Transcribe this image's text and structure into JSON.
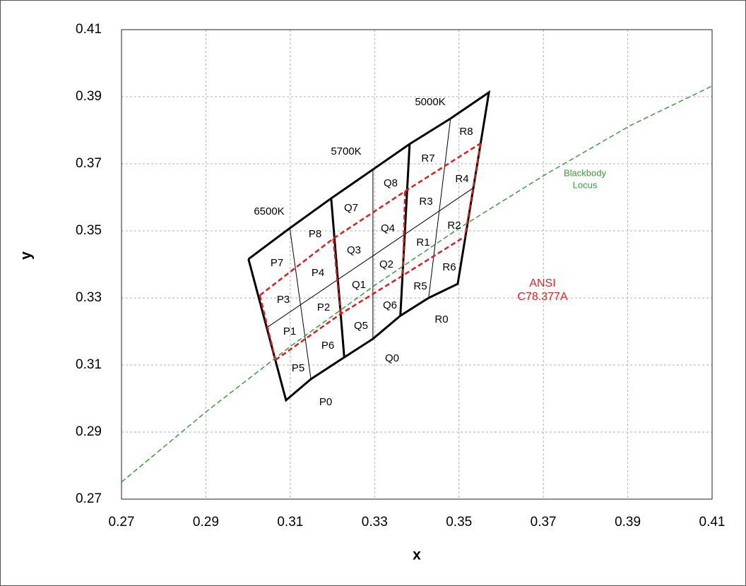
{
  "chart_data": {
    "type": "line",
    "x_label": "x",
    "y_label": "y",
    "xlim": [
      0.27,
      0.41
    ],
    "ylim": [
      0.27,
      0.41
    ],
    "xticks": [
      0.27,
      0.29,
      0.31,
      0.33,
      0.35,
      0.37,
      0.39,
      0.41
    ],
    "yticks": [
      0.27,
      0.29,
      0.31,
      0.33,
      0.35,
      0.37,
      0.39,
      0.41
    ],
    "grid": true,
    "series": [
      {
        "color": "#000000",
        "width": 3,
        "dash": false,
        "x": [
          0.3001,
          0.3099,
          0.3197,
          0.3296,
          0.3383,
          0.348,
          0.3571,
          0.3497,
          0.3428,
          0.3361,
          0.3296,
          0.3228,
          0.3149,
          0.309,
          0.3001
        ],
        "values": [
          0.3416,
          0.3508,
          0.3597,
          0.3683,
          0.3759,
          0.3835,
          0.3913,
          0.3342,
          0.33,
          0.3247,
          0.3178,
          0.3123,
          0.3058,
          0.2995,
          0.3416
        ]
      },
      {
        "color": "#000000",
        "width": 3,
        "dash": false,
        "x": [
          0.3197,
          0.3228
        ],
        "values": [
          0.3597,
          0.3123
        ]
      },
      {
        "color": "#000000",
        "width": 3,
        "dash": false,
        "x": [
          0.3383,
          0.3361
        ],
        "values": [
          0.3759,
          0.3247
        ]
      },
      {
        "color": "#000000",
        "width": 1,
        "dash": false,
        "x": [
          0.3099,
          0.3149
        ],
        "values": [
          0.3508,
          0.3058
        ]
      },
      {
        "color": "#000000",
        "width": 1,
        "dash": false,
        "x": [
          0.3296,
          0.3296
        ],
        "values": [
          0.3683,
          0.3178
        ]
      },
      {
        "color": "#000000",
        "width": 1,
        "dash": false,
        "x": [
          0.348,
          0.3428
        ],
        "values": [
          0.3835,
          0.33
        ]
      },
      {
        "color": "#000000",
        "width": 1,
        "dash": false,
        "x": [
          0.3045,
          0.3534
        ],
        "values": [
          0.3212,
          0.3628
        ]
      },
      {
        "color": "#d42020",
        "width": 2.5,
        "dash": true,
        "x": [
          0.3028,
          0.3202,
          0.3372,
          0.3551
        ],
        "values": [
          0.3308,
          0.3477,
          0.3618,
          0.3761
        ]
      },
      {
        "color": "#d42020",
        "width": 2.5,
        "dash": true,
        "x": [
          0.3065,
          0.3219,
          0.3367,
          0.3514
        ],
        "values": [
          0.3115,
          0.3252,
          0.3367,
          0.3483
        ]
      },
      {
        "color": "#d42020",
        "width": 2.5,
        "dash": true,
        "x": [
          0.3028,
          0.3065
        ],
        "values": [
          0.3308,
          0.3115
        ]
      },
      {
        "color": "#d42020",
        "width": 2.5,
        "dash": true,
        "x": [
          0.3202,
          0.3219
        ],
        "values": [
          0.3477,
          0.3252
        ]
      },
      {
        "color": "#d42020",
        "width": 2.5,
        "dash": true,
        "x": [
          0.3372,
          0.3367
        ],
        "values": [
          0.3618,
          0.3367
        ]
      },
      {
        "color": "#d42020",
        "width": 2.5,
        "dash": true,
        "x": [
          0.3551,
          0.3514
        ],
        "values": [
          0.3761,
          0.3483
        ]
      },
      {
        "color": "#3a9a3a",
        "width": 1.5,
        "dash": true,
        "x": [
          0.27,
          0.2901,
          0.3102,
          0.3303,
          0.3504,
          0.3705,
          0.3906,
          0.41
        ],
        "values": [
          0.2751,
          0.2961,
          0.3157,
          0.334,
          0.3511,
          0.3668,
          0.3814,
          0.3932
        ]
      }
    ],
    "region_labels": [
      "P0",
      "P5",
      "P6",
      "P1",
      "P2",
      "P3",
      "P4",
      "P7",
      "P8",
      "Q0",
      "Q5",
      "Q6",
      "Q1",
      "Q2",
      "Q3",
      "Q4",
      "Q7",
      "Q8",
      "R0",
      "R5",
      "R6",
      "R1",
      "R2",
      "R3",
      "R4",
      "R7",
      "R8"
    ],
    "cct_labels": [
      "6500K",
      "5700K",
      "5000K"
    ],
    "locus_label": {
      "lines": [
        "Blackbody",
        "Locus"
      ],
      "color": "#3a9a3a"
    },
    "ansi_label": {
      "lines": [
        "ANSI",
        "C78.377A"
      ],
      "color": "#e02020"
    }
  }
}
